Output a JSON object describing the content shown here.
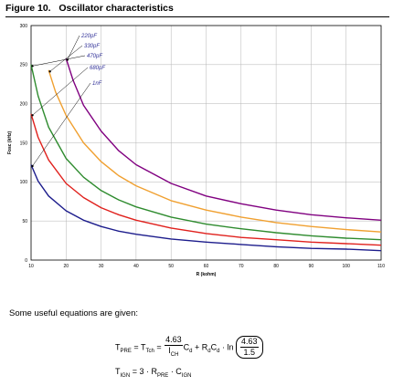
{
  "figure": {
    "number": "Figure 10.",
    "title": "Oscillator characteristics"
  },
  "chart_data": {
    "type": "line",
    "xlabel": "R (kohm)",
    "ylabel": "Fosc (kHz)",
    "xlim": [
      10,
      110
    ],
    "ylim": [
      0,
      300
    ],
    "xticks": [
      10,
      20,
      30,
      40,
      50,
      60,
      70,
      80,
      90,
      100,
      110
    ],
    "yticks": [
      0,
      50,
      100,
      150,
      200,
      250,
      300
    ],
    "grid": true,
    "series": [
      {
        "name": "220pF",
        "color": "#800080",
        "x": [
          20,
          22,
          25,
          30,
          35,
          40,
          50,
          60,
          70,
          80,
          90,
          100,
          110
        ],
        "y": [
          258,
          230,
          198,
          165,
          140,
          122,
          98,
          82,
          72,
          64,
          58,
          54,
          51
        ]
      },
      {
        "name": "330pF",
        "color": "#f0a030",
        "x": [
          15,
          17,
          20,
          25,
          30,
          35,
          40,
          50,
          60,
          70,
          80,
          90,
          100,
          110
        ],
        "y": [
          243,
          215,
          185,
          150,
          126,
          108,
          95,
          76,
          64,
          55,
          48,
          43,
          39,
          36
        ]
      },
      {
        "name": "470pF",
        "color": "#2e8b2e",
        "x": [
          10,
          12,
          15,
          20,
          25,
          30,
          35,
          40,
          50,
          60,
          70,
          80,
          90,
          100,
          110
        ],
        "y": [
          250,
          210,
          170,
          130,
          106,
          89,
          77,
          68,
          55,
          46,
          40,
          35,
          31,
          28,
          26
        ]
      },
      {
        "name": "680pF",
        "color": "#e0201c",
        "x": [
          10,
          12,
          15,
          20,
          25,
          30,
          35,
          40,
          50,
          60,
          70,
          80,
          90,
          100,
          110
        ],
        "y": [
          187,
          157,
          128,
          98,
          80,
          67,
          58,
          51,
          41,
          34,
          29,
          26,
          23,
          21,
          19
        ]
      },
      {
        "name": "1nF",
        "color": "#1c1c8c",
        "x": [
          10,
          12,
          15,
          20,
          25,
          30,
          35,
          40,
          50,
          60,
          70,
          80,
          90,
          100,
          110
        ],
        "y": [
          122,
          101,
          82,
          63,
          51,
          43,
          37,
          33,
          27,
          23,
          20,
          17,
          15,
          14,
          12
        ]
      }
    ],
    "annotations": [
      "220pF",
      "330pF",
      "470pF",
      "680pF",
      "1nF"
    ]
  },
  "equations": {
    "intro": "Some useful equations are given:",
    "eq1": {
      "lhs": "T",
      "lhs_sub": "PRE",
      "eq_sign": "=",
      "mid": "T",
      "mid_sub": "Tch",
      "frac_num": "4.63",
      "frac_den": "I",
      "frac_den_sub": "CH",
      "term_c": "C",
      "term_c_sub": "d",
      "plus": "+",
      "r": "R",
      "r_sub": "d",
      "c2": "C",
      "c2_sub": "d",
      "ln": "· ln",
      "paren_num": "4.63",
      "paren_den": "1.5"
    },
    "eq2": {
      "lhs": "T",
      "lhs_sub": "IGN",
      "eq_sign": "= 3 · R",
      "r_sub": "PRE",
      "dot": "· C",
      "c_sub": "IGN"
    }
  }
}
